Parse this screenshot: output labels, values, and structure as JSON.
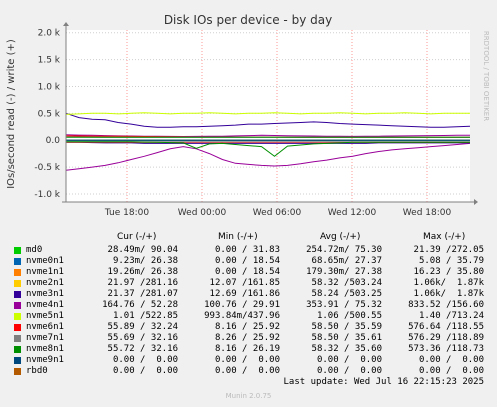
{
  "chart_data": {
    "type": "line",
    "title": "Disk IOs per device - by day",
    "ylabel": "IOs/second read (-) / write (+)",
    "ylim": [
      -1150,
      2050
    ],
    "y_ticks": [
      {
        "value": 2000,
        "label": "2.0 k"
      },
      {
        "value": 1500,
        "label": "1.5 k"
      },
      {
        "value": 1000,
        "label": "1.0 k"
      },
      {
        "value": 500,
        "label": "0.5 k"
      },
      {
        "value": 0,
        "label": "0.0"
      },
      {
        "value": -500,
        "label": "-0.5 k"
      },
      {
        "value": -1000,
        "label": "-1.0 k"
      }
    ],
    "x_ticks": [
      "Tue 18:00",
      "Wed 00:00",
      "Wed 06:00",
      "Wed 12:00",
      "Wed 18:00"
    ],
    "side_label": "RRDTOOL / TOBI OETIKER",
    "series": [
      {
        "name": "nvme4n1",
        "color": "#990099",
        "write": [
          100,
          95,
          90,
          85,
          80,
          78,
          75,
          72,
          70,
          68,
          70,
          72,
          75,
          80,
          85,
          90,
          88,
          84,
          80,
          78,
          75,
          72,
          70,
          72,
          75,
          78,
          80,
          82,
          85,
          88,
          90,
          92
        ],
        "read": [
          -560,
          -530,
          -500,
          -470,
          -420,
          -360,
          -300,
          -230,
          -160,
          -120,
          -160,
          -250,
          -360,
          -430,
          -450,
          -470,
          -480,
          -470,
          -440,
          -400,
          -370,
          -330,
          -300,
          -250,
          -210,
          -180,
          -160,
          -140,
          -120,
          -100,
          -80,
          -60
        ]
      },
      {
        "name": "nvme3n1",
        "color": "#330099",
        "write": [
          500,
          420,
          390,
          380,
          330,
          300,
          260,
          240,
          240,
          250,
          250,
          260,
          270,
          280,
          300,
          300,
          310,
          320,
          330,
          340,
          330,
          310,
          300,
          290,
          280,
          270,
          260,
          250,
          240,
          240,
          250,
          260
        ],
        "read": [
          -40,
          -40,
          -45,
          -50,
          -50,
          -50,
          -60,
          -60,
          -60,
          -60,
          -60,
          -60,
          -60,
          -60,
          -60,
          -60,
          -60,
          -60,
          -60,
          -60,
          -60,
          -60,
          -60,
          -60,
          -50,
          -50,
          -50,
          -50,
          -50,
          -50,
          -50,
          -50
        ]
      },
      {
        "name": "nvme5n1",
        "color": "#ccff00",
        "write": [
          480,
          490,
          500,
          500,
          490,
          500,
          510,
          500,
          490,
          500,
          500,
          510,
          500,
          490,
          500,
          500,
          510,
          500,
          490,
          500,
          500,
          510,
          500,
          490,
          500,
          500,
          510,
          500,
          490,
          500,
          500,
          500
        ],
        "read": [
          0,
          0,
          0,
          0,
          0,
          0,
          0,
          0,
          0,
          0,
          0,
          0,
          0,
          0,
          0,
          0,
          0,
          0,
          0,
          0,
          0,
          0,
          0,
          0,
          0,
          0,
          0,
          0,
          0,
          0,
          0,
          0
        ]
      },
      {
        "name": "nvme6n1",
        "color": "#ff0000",
        "write": [
          80,
          78,
          76,
          74,
          72,
          70,
          68,
          66,
          64,
          62,
          60,
          60,
          60,
          60,
          60,
          60,
          60,
          58,
          56,
          56,
          56,
          56,
          56,
          56,
          56,
          56,
          56,
          56,
          56,
          56,
          56,
          56
        ],
        "read": [
          -40,
          -40,
          -40,
          -40,
          -40,
          -40,
          -40,
          -40,
          -40,
          -40,
          -40,
          -40,
          -40,
          -40,
          -40,
          -40,
          -40,
          -40,
          -40,
          -40,
          -40,
          -40,
          -40,
          -40,
          -40,
          -40,
          -40,
          -40,
          -40,
          -40,
          -40,
          -40
        ]
      },
      {
        "name": "nvme7n1",
        "color": "#808080",
        "write": [
          60,
          60,
          58,
          56,
          56,
          56,
          56,
          56,
          56,
          56,
          56,
          56,
          56,
          56,
          56,
          56,
          56,
          56,
          56,
          56,
          56,
          56,
          56,
          56,
          56,
          56,
          56,
          56,
          56,
          56,
          56,
          56
        ],
        "read": [
          -30,
          -30,
          -30,
          -30,
          -30,
          -30,
          -30,
          -30,
          -30,
          -30,
          -30,
          -30,
          -30,
          -30,
          -30,
          -30,
          -30,
          -30,
          -30,
          -30,
          -30,
          -30,
          -30,
          -30,
          -30,
          -30,
          -30,
          -30,
          -30,
          -30,
          -30,
          -30
        ]
      },
      {
        "name": "nvme8n1",
        "color": "#008f00",
        "write": [
          56,
          56,
          56,
          56,
          56,
          56,
          56,
          56,
          56,
          56,
          56,
          56,
          56,
          56,
          56,
          56,
          56,
          56,
          56,
          56,
          56,
          56,
          56,
          56,
          56,
          56,
          56,
          56,
          56,
          56,
          56,
          56
        ],
        "read": [
          -30,
          -30,
          -30,
          -30,
          -30,
          -30,
          -35,
          -40,
          -45,
          -50,
          -150,
          -70,
          -60,
          -80,
          -100,
          -120,
          -300,
          -110,
          -90,
          -70,
          -60,
          -50,
          -40,
          -40,
          -40,
          -40,
          -40,
          -40,
          -40,
          -40,
          -40,
          -40
        ]
      },
      {
        "name": "nvme9n1",
        "color": "#00487d",
        "write": [
          0,
          0,
          0,
          0,
          0,
          0,
          0,
          0,
          0,
          0,
          0,
          0,
          0,
          0,
          0,
          0,
          0,
          0,
          0,
          0,
          0,
          0,
          0,
          0,
          0,
          0,
          0,
          0,
          0,
          0,
          0,
          0
        ],
        "read": [
          0,
          0,
          0,
          0,
          0,
          0,
          0,
          0,
          0,
          0,
          0,
          0,
          0,
          0,
          0,
          0,
          0,
          0,
          0,
          0,
          0,
          0,
          0,
          0,
          0,
          0,
          0,
          0,
          0,
          0,
          0,
          0
        ]
      }
    ]
  },
  "legend": {
    "header_cur": "Cur (-/+)",
    "header_min": "Min (-/+)",
    "header_avg": "Avg (-/+)",
    "header_max": "Max (-/+)",
    "rows": [
      {
        "name": "md0",
        "color": "#00cc00",
        "cur": "28.49m/ 90.04",
        "min": "0.00 / 31.83",
        "avg": "254.72m/ 75.30",
        "max": "21.39 /272.05"
      },
      {
        "name": "nvme0n1",
        "color": "#0066b3",
        "cur": "9.23m/ 26.38",
        "min": "0.00 / 18.54",
        "avg": "68.65m/ 27.37",
        "max": "5.08 / 35.79"
      },
      {
        "name": "nvme1n1",
        "color": "#ff8000",
        "cur": "19.26m/ 26.38",
        "min": "0.00 / 18.54",
        "avg": "179.30m/ 27.38",
        "max": "16.23 / 35.80"
      },
      {
        "name": "nvme2n1",
        "color": "#ffcc00",
        "cur": "21.97 /281.16",
        "min": "12.07 /161.85",
        "avg": "58.32 /503.24",
        "max": "1.06k/  1.87k"
      },
      {
        "name": "nvme3n1",
        "color": "#330099",
        "cur": "21.37 /281.07",
        "min": "12.69 /161.86",
        "avg": "58.24 /503.25",
        "max": "1.06k/  1.87k"
      },
      {
        "name": "nvme4n1",
        "color": "#990099",
        "cur": "164.76 / 52.28",
        "min": "100.76 / 29.91",
        "avg": "353.91 / 75.32",
        "max": "833.52 /156.60"
      },
      {
        "name": "nvme5n1",
        "color": "#ccff00",
        "cur": "1.01 /522.85",
        "min": "993.84m/437.96",
        "avg": "1.06 /500.55",
        "max": "1.40 /713.24"
      },
      {
        "name": "nvme6n1",
        "color": "#ff0000",
        "cur": "55.89 / 32.24",
        "min": "8.16 / 25.92",
        "avg": "58.50 / 35.59",
        "max": "576.64 /118.55"
      },
      {
        "name": "nvme7n1",
        "color": "#808080",
        "cur": "55.69 / 32.16",
        "min": "8.26 / 25.92",
        "avg": "58.50 / 35.61",
        "max": "576.29 /118.89"
      },
      {
        "name": "nvme8n1",
        "color": "#008f00",
        "cur": "55.72 / 32.16",
        "min": "8.16 / 26.19",
        "avg": "58.32 / 35.60",
        "max": "573.36 /118.73"
      },
      {
        "name": "nvme9n1",
        "color": "#00487d",
        "cur": "0.00 /  0.00",
        "min": "0.00 /  0.00",
        "avg": "0.00 /  0.00",
        "max": "0.00 /  0.00"
      },
      {
        "name": "rbd0",
        "color": "#b35a00",
        "cur": "0.00 /  0.00",
        "min": "0.00 /  0.00",
        "avg": "0.00 /  0.00",
        "max": "0.00 /  0.00"
      }
    ]
  },
  "footer": {
    "last_update": "Last update: Wed Jul 16 22:15:23 2025",
    "munin": "Munin 2.0.75"
  }
}
